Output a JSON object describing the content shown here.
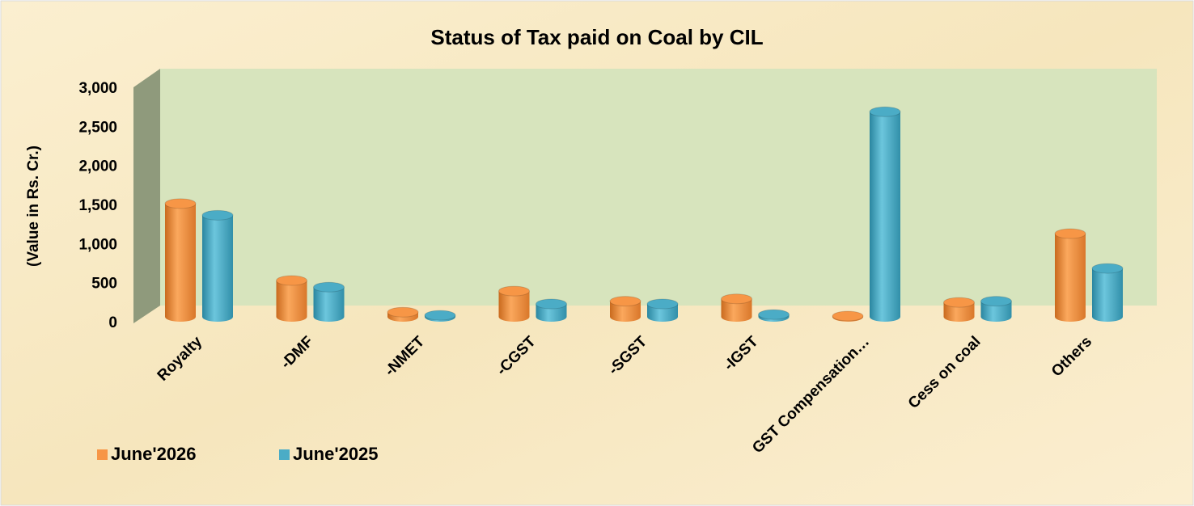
{
  "chart_data": {
    "type": "bar3d",
    "title": "Status of Tax paid on Coal by CIL",
    "y_label": "(Value in Rs. Cr.)",
    "categories": [
      "Royalty",
      "-DMF",
      "-NMET",
      "-CGST",
      "-SGST",
      "-IGST",
      "GST Compensation…",
      "Cess on coal",
      "Others"
    ],
    "series": [
      {
        "name": "June'2026",
        "color": "#f79646",
        "values": [
          1450,
          465,
          60,
          330,
          200,
          230,
          10,
          185,
          1065
        ]
      },
      {
        "name": "June'2025",
        "color": "#4bacc6",
        "values": [
          1300,
          380,
          20,
          165,
          165,
          30,
          2625,
          200,
          620
        ]
      }
    ],
    "ylim": [
      0,
      3000
    ],
    "yticks": [
      {
        "value": 0,
        "label": "0"
      },
      {
        "value": 500,
        "label": "500"
      },
      {
        "value": 1000,
        "label": "1,000"
      },
      {
        "value": 1500,
        "label": "1,500"
      },
      {
        "value": 2000,
        "label": "2,000"
      },
      {
        "value": 2500,
        "label": "2,500"
      },
      {
        "value": 3000,
        "label": "3,000"
      }
    ],
    "legend": "bottom-left"
  }
}
